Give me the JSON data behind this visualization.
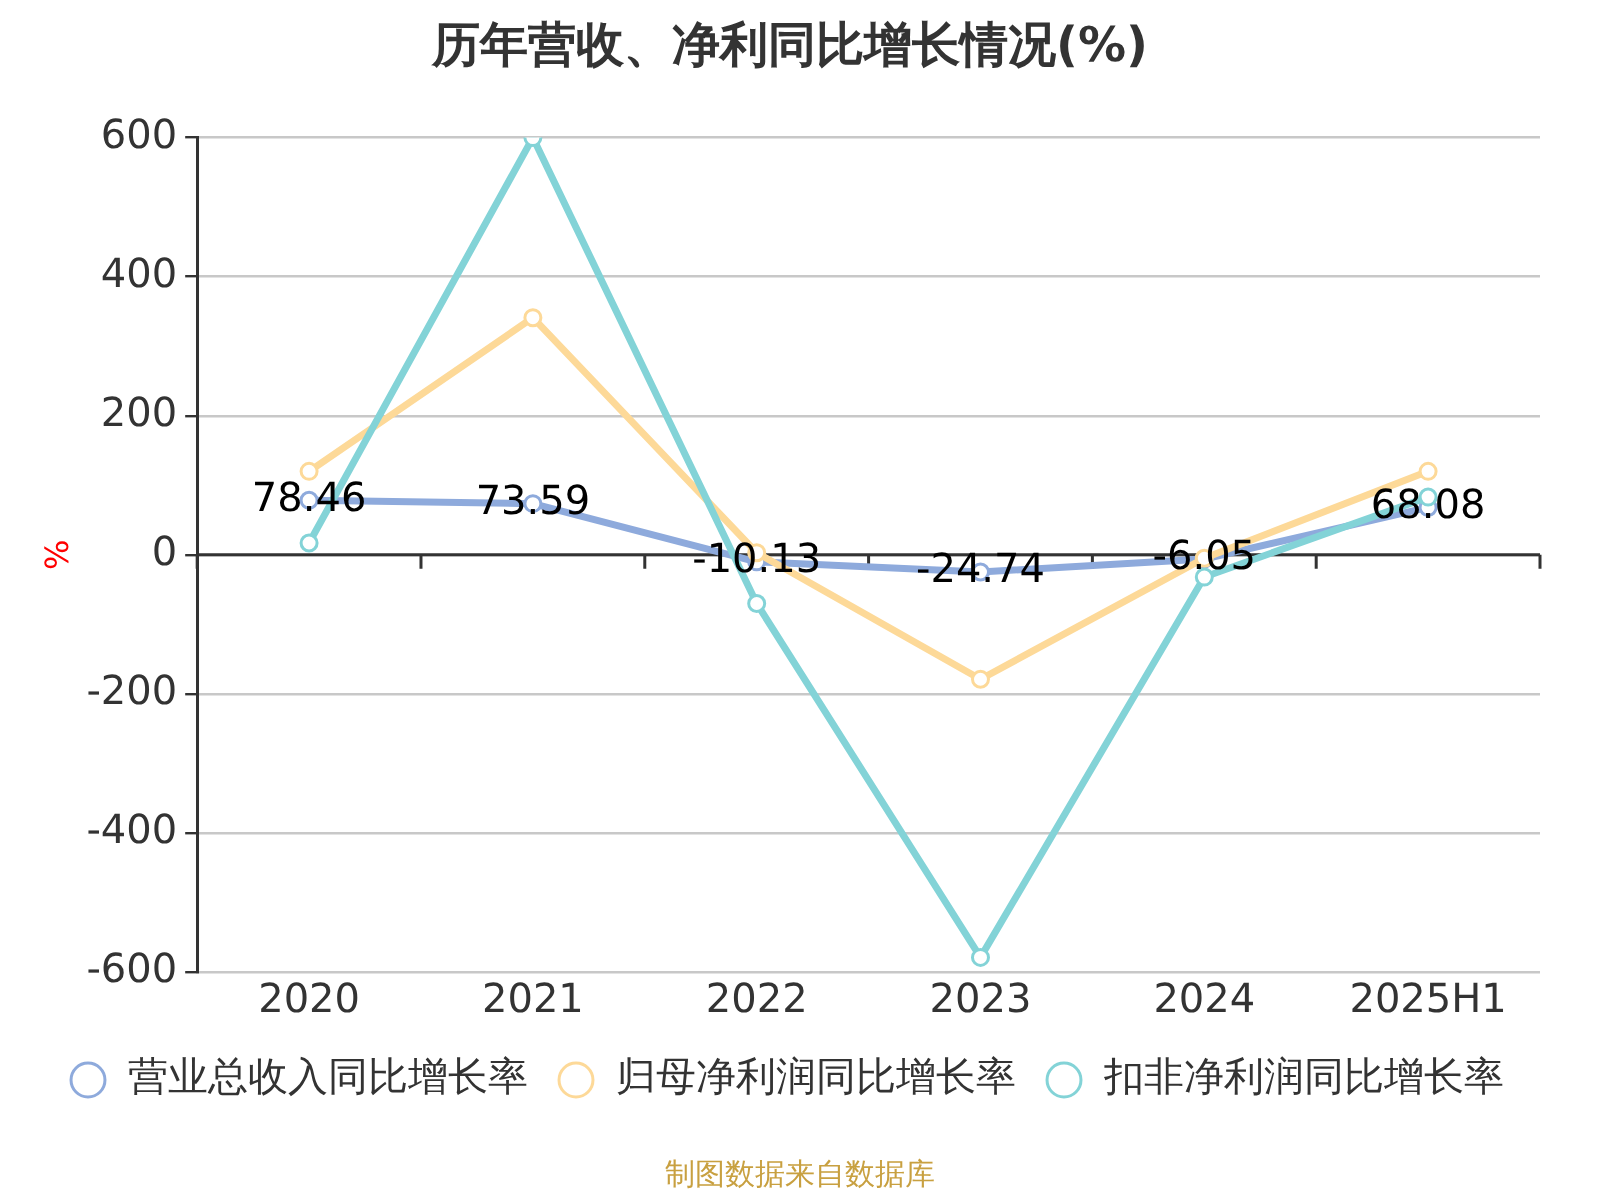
{
  "chart_data": {
    "type": "line",
    "title": "历年营收、净利同比增长情况(%)",
    "ylabel": "%",
    "categories": [
      "2020",
      "2021",
      "2022",
      "2023",
      "2024",
      "2025H1"
    ],
    "series": [
      {
        "name": "营业总收入同比增长率",
        "color": "#8eaadc",
        "values": [
          78.46,
          73.59,
          -10.13,
          -24.74,
          -6.05,
          68.08
        ],
        "value_labels": [
          "78.46",
          "73.59",
          "-10.13",
          "-24.74",
          "-6.05",
          "68.08"
        ]
      },
      {
        "name": "归母净利润同比增长率",
        "color": "#fdd998",
        "values": [
          120,
          341,
          3,
          -179,
          -5,
          120
        ]
      },
      {
        "name": "扣非净利润同比增长率",
        "color": "#83d3d7",
        "values": [
          17,
          600,
          -70,
          -579,
          -32,
          83
        ]
      }
    ],
    "ylim": [
      -600,
      600
    ],
    "yticks": [
      -600,
      -400,
      -200,
      0,
      200,
      400,
      600
    ],
    "grid": "y",
    "legend": "bottom",
    "marker": "circle",
    "line_style": "solid",
    "annotations": [
      "制图数据来自数据库"
    ]
  }
}
